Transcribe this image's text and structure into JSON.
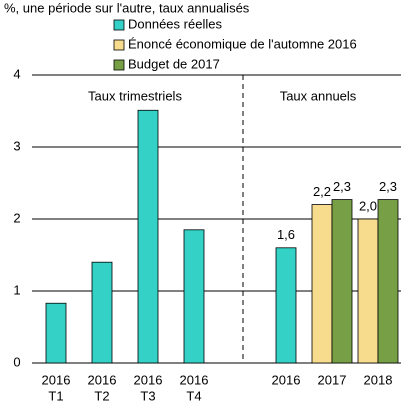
{
  "chart_data": {
    "type": "bar",
    "title": "%, une période sur l'autre, taux annualisés",
    "categories": [
      [
        "2016",
        "T1"
      ],
      [
        "2016",
        "T2"
      ],
      [
        "2016",
        "T3"
      ],
      [
        "2016",
        "T4"
      ],
      null,
      [
        "2016"
      ],
      [
        "2017"
      ],
      [
        "2018"
      ]
    ],
    "series": [
      {
        "name": "Données réelles",
        "color": "#33d1c6",
        "values": [
          0.83,
          1.4,
          3.51,
          1.85,
          null,
          1.6,
          null,
          null
        ],
        "value_labels": [
          null,
          null,
          null,
          null,
          null,
          "1,6",
          null,
          null
        ]
      },
      {
        "name": "Énoncé économique de l'automne 2016",
        "color": "#f7dc8e",
        "values": [
          null,
          null,
          null,
          null,
          null,
          null,
          2.2,
          2.0
        ],
        "value_labels": [
          null,
          null,
          null,
          null,
          null,
          null,
          "2,2",
          "2,0"
        ]
      },
      {
        "name": "Budget de 2017",
        "color": "#77a046",
        "values": [
          null,
          null,
          null,
          null,
          null,
          null,
          2.27,
          2.27
        ],
        "value_labels": [
          null,
          null,
          null,
          null,
          null,
          null,
          "2,3",
          "2,3"
        ]
      }
    ],
    "annotations": [
      "Taux trimestriels",
      "Taux annuels"
    ],
    "ylim": [
      0,
      4
    ],
    "yticks": [
      0,
      1,
      2,
      3,
      4
    ],
    "grid": true
  }
}
